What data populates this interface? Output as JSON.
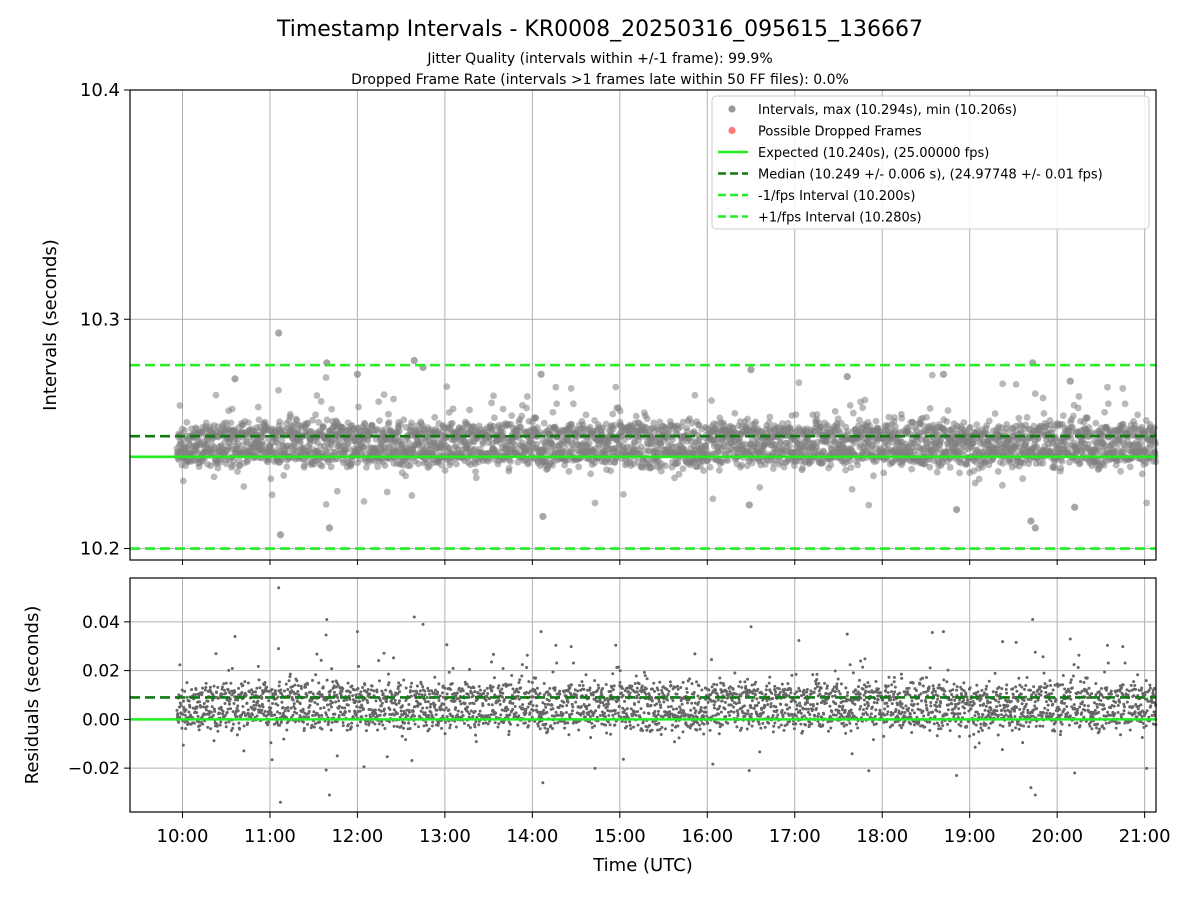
{
  "colors": {
    "points": "#808080",
    "dropped": "#ff5555",
    "expected": "#22ee22",
    "median": "#117a11",
    "bounds": "#22ee22",
    "grid": "#b0b0b0"
  },
  "chart_data": [
    {
      "type": "scatter",
      "title": "Timestamp Intervals - KR0008_20250316_095615_136667",
      "subtitle_lines": [
        "Jitter Quality (intervals within +/-1 frame): 99.9%",
        "Dropped Frame Rate (intervals >1 frames late within 50 FF files): 0.0%"
      ],
      "ylabel": "Intervals (seconds)",
      "ylim": [
        10.195,
        10.4
      ],
      "yticks": [
        10.2,
        10.3,
        10.4
      ],
      "ytick_labels": [
        "10.2",
        "10.3",
        "10.4"
      ],
      "xlim_hours": [
        9.4,
        21.13
      ],
      "xticks_hours": [
        10,
        11,
        12,
        13,
        14,
        15,
        16,
        17,
        18,
        19,
        20,
        21
      ],
      "grid": true,
      "legend_position": "top-right",
      "legend": [
        {
          "label": "Intervals, max (10.294s), min (10.206s)",
          "kind": "dot",
          "color": "#808080"
        },
        {
          "label": "Possible Dropped Frames",
          "kind": "dot",
          "color": "#ff5555"
        },
        {
          "label": "Expected (10.240s), (25.00000 fps)",
          "kind": "solid",
          "color": "#22ee22"
        },
        {
          "label": "Median (10.249 +/- 0.006 s), (24.97748 +/- 0.01 fps)",
          "kind": "dashed",
          "color": "#117a11"
        },
        {
          "label": "-1/fps Interval (10.200s)",
          "kind": "dashed",
          "color": "#22ee22"
        },
        {
          "label": "+1/fps Interval (10.280s)",
          "kind": "dashed",
          "color": "#22ee22"
        }
      ],
      "expected": 10.24,
      "median": 10.249,
      "lower_bound": 10.2,
      "upper_bound": 10.28,
      "max": 10.294,
      "min": 10.206,
      "outliers": [
        {
          "t": 11.1,
          "v": 10.294
        },
        {
          "t": 11.12,
          "v": 10.206
        },
        {
          "t": 11.65,
          "v": 10.281
        },
        {
          "t": 11.68,
          "v": 10.209
        },
        {
          "t": 12.65,
          "v": 10.282
        },
        {
          "t": 12.75,
          "v": 10.279
        },
        {
          "t": 14.1,
          "v": 10.276
        },
        {
          "t": 14.12,
          "v": 10.214
        },
        {
          "t": 16.5,
          "v": 10.278
        },
        {
          "t": 16.48,
          "v": 10.219
        },
        {
          "t": 18.7,
          "v": 10.276
        },
        {
          "t": 18.85,
          "v": 10.217
        },
        {
          "t": 19.72,
          "v": 10.281
        },
        {
          "t": 19.75,
          "v": 10.209
        },
        {
          "t": 19.7,
          "v": 10.212
        },
        {
          "t": 20.15,
          "v": 10.273
        },
        {
          "t": 20.2,
          "v": 10.218
        },
        {
          "t": 12.0,
          "v": 10.276
        },
        {
          "t": 17.6,
          "v": 10.275
        },
        {
          "t": 10.6,
          "v": 10.274
        }
      ]
    },
    {
      "type": "scatter",
      "xlabel": "Time (UTC)",
      "ylabel": "Residuals (seconds)",
      "ylim": [
        -0.038,
        0.058
      ],
      "yticks": [
        -0.02,
        0.0,
        0.02,
        0.04
      ],
      "ytick_labels": [
        "−0.02",
        "0.00",
        "0.02",
        "0.04"
      ],
      "xlim_hours": [
        9.4,
        21.13
      ],
      "xticks_hours": [
        10,
        11,
        12,
        13,
        14,
        15,
        16,
        17,
        18,
        19,
        20,
        21
      ],
      "xtick_labels": [
        "10:00",
        "11:00",
        "12:00",
        "13:00",
        "14:00",
        "15:00",
        "16:00",
        "17:00",
        "18:00",
        "19:00",
        "20:00",
        "21:00"
      ],
      "grid": true,
      "expected_residual": 0.0,
      "median_residual": 0.009
    }
  ]
}
